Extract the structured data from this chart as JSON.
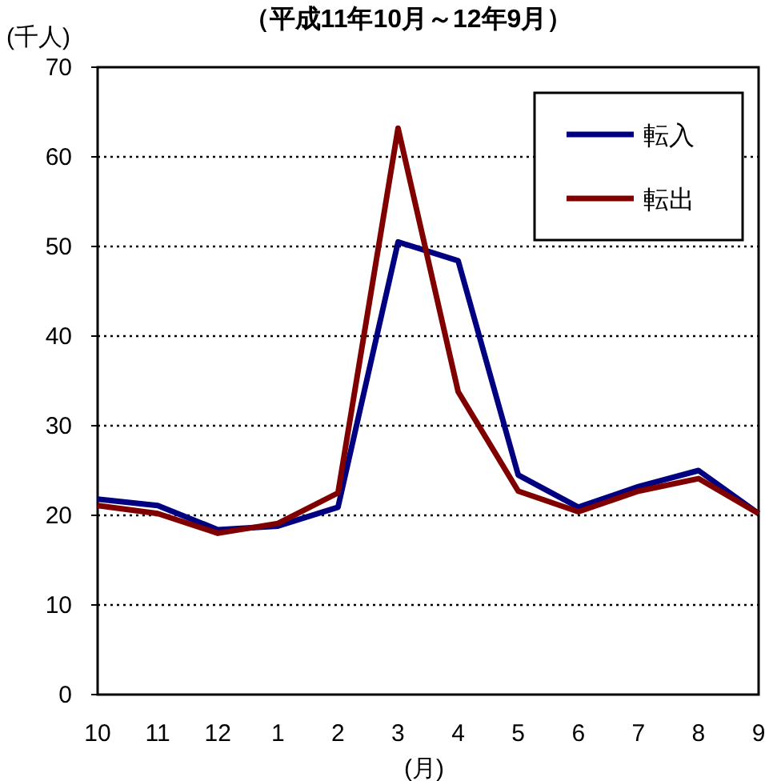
{
  "chart_data": {
    "type": "line",
    "title": "（平成11年10月～12年9月）",
    "xlabel": "(月)",
    "ylabel": "(千人)",
    "categories": [
      "10",
      "11",
      "12",
      "1",
      "2",
      "3",
      "4",
      "5",
      "6",
      "7",
      "8",
      "9"
    ],
    "series": [
      {
        "name": "転入",
        "color": "#000080",
        "values": [
          21.8,
          21.1,
          18.4,
          18.8,
          20.9,
          50.5,
          48.4,
          24.5,
          20.9,
          23.2,
          25.0,
          20.2
        ]
      },
      {
        "name": "転出",
        "color": "#800000",
        "values": [
          21.1,
          20.2,
          18.0,
          19.1,
          22.5,
          63.2,
          33.8,
          22.7,
          20.4,
          22.7,
          24.1,
          20.2
        ]
      }
    ],
    "ylim": [
      0,
      70
    ],
    "yticks": [
      0,
      10,
      20,
      30,
      40,
      50,
      60,
      70
    ],
    "grid": "y",
    "legend": "top right"
  }
}
